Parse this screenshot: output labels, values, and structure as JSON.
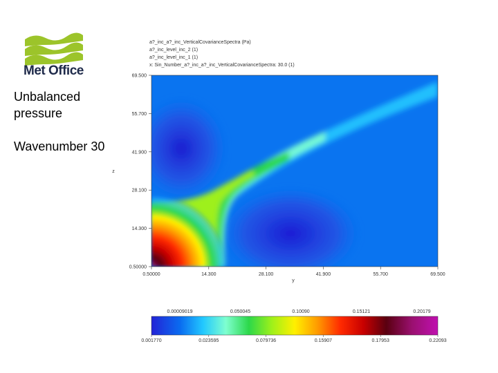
{
  "brand": {
    "name": "Met Office"
  },
  "side_labels": [
    "Unbalanced pressure",
    "Wavenumber 30"
  ],
  "plot_header": [
    "a?_inc_a?_inc_VerticalCovarianceSpectra (Pa)",
    "a?_inc_level_inc_2 (1)",
    "a?_inc_level_inc_1 (1)",
    "x: Sin_Number_a?_inc_a?_inc_VerticalCovarianceSpectra: 30.0 (1)"
  ],
  "colors": {
    "brand_green": "#9cc42a",
    "brand_text": "#1e2a4a",
    "colormap": [
      "#2323d6",
      "#0a6cf0",
      "#22c8ff",
      "#7fffd0",
      "#2cd84a",
      "#9ef01a",
      "#fff000",
      "#ff9a00",
      "#ff2a00",
      "#c80000",
      "#5a0010",
      "#9a1070",
      "#c010b0"
    ]
  },
  "chart_data": {
    "type": "heatmap",
    "title": "",
    "xlabel": "y",
    "ylabel": "z",
    "x_ticks": [
      "0.50000",
      "14.300",
      "28.100",
      "41.900",
      "55.700",
      "69.500"
    ],
    "y_ticks": [
      "0.50000",
      "14.300",
      "28.100",
      "41.900",
      "55.700",
      "69.500"
    ],
    "xlim": [
      0.5,
      69.5
    ],
    "ylim": [
      0.5,
      69.5
    ],
    "grid": false,
    "colorbar": {
      "top_labels": [
        "0.00009019",
        "0.050045",
        "0.10090",
        "0.15121",
        "0.20179"
      ],
      "bottom_labels": [
        "0.001770",
        "0.023595",
        "0.079736",
        "0.15907",
        "0.17953",
        "0.22093"
      ],
      "min": 0.00177,
      "max": 0.22093
    },
    "field_description_points": [
      {
        "y": 0.5,
        "z": 0.5,
        "value": 0.22
      },
      {
        "y": 10.0,
        "z": 10.0,
        "value": 0.12
      },
      {
        "y": 14.3,
        "z": 14.3,
        "value": 0.09
      },
      {
        "y": 24.0,
        "z": 24.0,
        "value": 0.06
      },
      {
        "y": 35.0,
        "z": 35.0,
        "value": 0.035
      },
      {
        "y": 50.0,
        "z": 50.0,
        "value": 0.02
      },
      {
        "y": 65.0,
        "z": 65.0,
        "value": 0.012
      }
    ]
  }
}
